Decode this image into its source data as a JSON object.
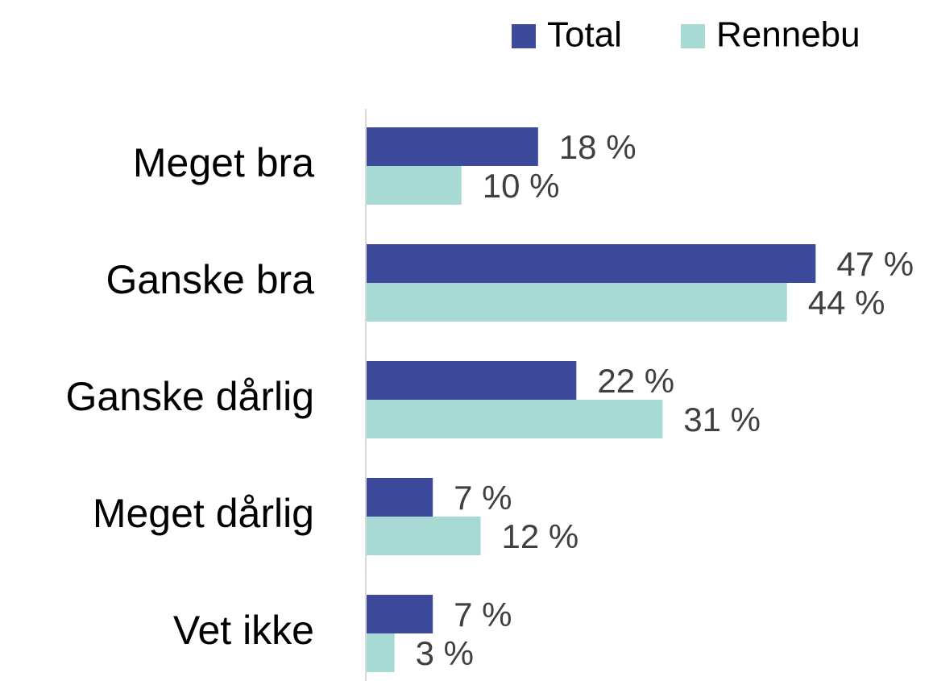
{
  "chart_data": {
    "type": "bar",
    "orientation": "horizontal",
    "categories": [
      "Meget bra",
      "Ganske bra",
      "Ganske dårlig",
      "Meget dårlig",
      "Vet ikke"
    ],
    "series": [
      {
        "name": "Total",
        "color": "#3d4a9b",
        "values": [
          18,
          47,
          22,
          7,
          7
        ],
        "value_labels": [
          "18 %",
          "47 %",
          "22 %",
          "7 %",
          "7 %"
        ]
      },
      {
        "name": "Rennebu",
        "color": "#a8dad5",
        "values": [
          10,
          44,
          31,
          12,
          3
        ],
        "value_labels": [
          "10 %",
          "44 %",
          "31 %",
          "12 %",
          "3 %"
        ]
      }
    ],
    "xlim": [
      0,
      50
    ],
    "legend": "top-right"
  }
}
